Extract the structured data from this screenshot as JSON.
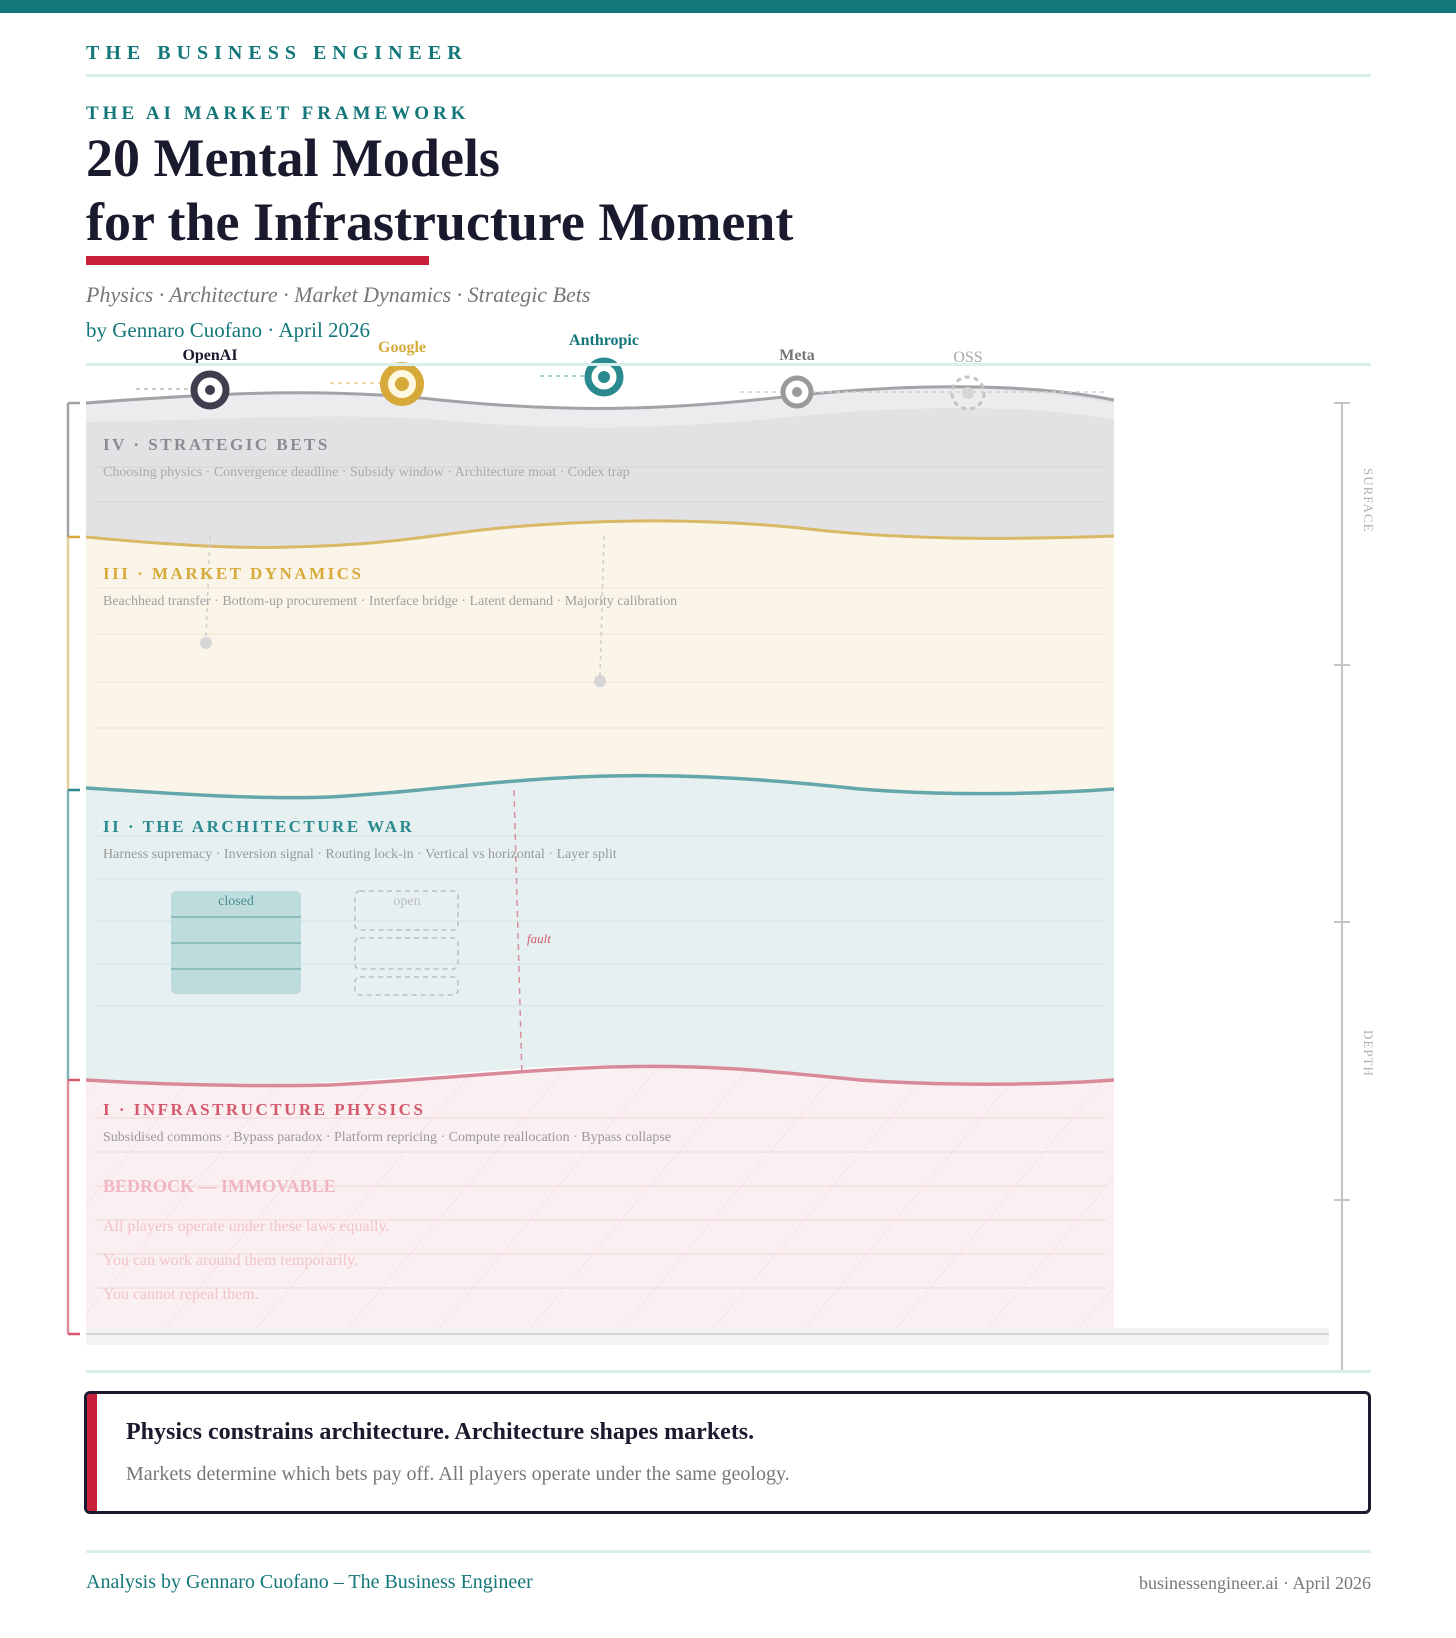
{
  "header": {
    "brand": "THE BUSINESS ENGINEER",
    "kicker": "THE AI MARKET FRAMEWORK",
    "title_line1": "20 Mental Models",
    "title_line2": "for the Infrastructure Moment",
    "subtitle": "Physics · Architecture · Market Dynamics · Strategic Bets",
    "byline": "by Gennaro Cuofano · April 2026"
  },
  "players": [
    {
      "name": "OpenAI",
      "color": "#3e3e4e"
    },
    {
      "name": "Google",
      "color": "#d6a93a"
    },
    {
      "name": "Anthropic",
      "color": "#2a8a8f"
    },
    {
      "name": "Meta",
      "color": "#9a9a9a"
    },
    {
      "name": "OSS",
      "color": "#bcbcbc"
    }
  ],
  "layers": [
    {
      "label": "IV · STRATEGIC BETS",
      "models": "Choosing physics · Convergence deadline · Subsidy window · Architecture moat · Codex trap",
      "color": "#8a8a92",
      "fill": "#e2e2e5"
    },
    {
      "label": "III · MARKET DYNAMICS",
      "models": "Beachhead transfer · Bottom-up procurement · Interface bridge · Latent demand · Majority calibration",
      "color": "#d6a93a",
      "fill": "#faf5e8"
    },
    {
      "label": "II · THE ARCHITECTURE WAR",
      "models": "Harness supremacy · Inversion signal · Routing lock-in · Vertical vs horizontal · Layer split",
      "color": "#2a8a8f",
      "fill": "#e6f0f0"
    },
    {
      "label": "I · INFRASTRUCTURE PHYSICS",
      "models": "Subsidised commons · Bypass paradox · Platform repricing · Compute reallocation · Bypass collapse",
      "color": "#d4596d",
      "fill": "#faeff1"
    }
  ],
  "architecture": {
    "closed_label": "closed",
    "open_label": "open",
    "fault_label": "fault"
  },
  "bedrock": {
    "title": "BEDROCK — IMMOVABLE",
    "lines": [
      "All players operate under these laws equally.",
      "You can work around them temporarily.",
      "You cannot repeal them."
    ]
  },
  "depth_scale": {
    "surface_label": "SURFACE",
    "depth_label": "DEPTH"
  },
  "callout": {
    "headline": "Physics constrains architecture. Architecture shapes markets.",
    "body": "Markets determine which bets pay off. All players operate under the same geology."
  },
  "footer": {
    "left": "Analysis by Gennaro Cuofano – The Business Engineer",
    "right": "businessengineer.ai · April 2026"
  },
  "colors": {
    "teal": "#13777a",
    "navy": "#1a1a2e",
    "red": "#c8203a",
    "muted": "#777777"
  }
}
